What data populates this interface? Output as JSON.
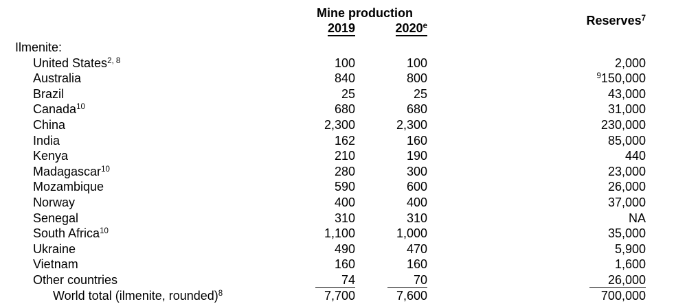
{
  "header": {
    "mine_production_label": "Mine production",
    "year_2019": "2019",
    "year_2020": "2020",
    "year_2020_sup": "e",
    "reserves_label": "Reserves",
    "reserves_sup": "7"
  },
  "section": {
    "label": "Ilmenite:"
  },
  "rows": [
    {
      "label": "United States",
      "label_sup": "2, 8",
      "prod_2019": "100",
      "prod_2020": "100",
      "reserves": "2,000"
    },
    {
      "label": "Australia",
      "prod_2019": "840",
      "prod_2020": "800",
      "reserves": "150,000",
      "reserves_presup": "9"
    },
    {
      "label": "Brazil",
      "prod_2019": "25",
      "prod_2020": "25",
      "reserves": "43,000"
    },
    {
      "label": "Canada",
      "label_sup": "10",
      "prod_2019": "680",
      "prod_2020": "680",
      "reserves": "31,000"
    },
    {
      "label": "China",
      "prod_2019": "2,300",
      "prod_2020": "2,300",
      "reserves": "230,000"
    },
    {
      "label": "India",
      "prod_2019": "162",
      "prod_2020": "160",
      "reserves": "85,000"
    },
    {
      "label": "Kenya",
      "prod_2019": "210",
      "prod_2020": "190",
      "reserves": "440"
    },
    {
      "label": "Madagascar",
      "label_sup": "10",
      "prod_2019": "280",
      "prod_2020": "300",
      "reserves": "23,000"
    },
    {
      "label": "Mozambique",
      "prod_2019": "590",
      "prod_2020": "600",
      "reserves": "26,000"
    },
    {
      "label": "Norway",
      "prod_2019": "400",
      "prod_2020": "400",
      "reserves": "37,000"
    },
    {
      "label": "Senegal",
      "prod_2019": "310",
      "prod_2020": "310",
      "reserves": "NA"
    },
    {
      "label": "South Africa",
      "label_sup": "10",
      "prod_2019": "1,100",
      "prod_2020": "1,000",
      "reserves": "35,000"
    },
    {
      "label": "Ukraine",
      "prod_2019": "490",
      "prod_2020": "470",
      "reserves": "5,900"
    },
    {
      "label": "Vietnam",
      "prod_2019": "160",
      "prod_2020": "160",
      "reserves": "1,600"
    },
    {
      "label": "Other countries",
      "prod_2019": "74",
      "prod_2020": "70",
      "reserves": "26,000",
      "sum_rule": true
    }
  ],
  "total": {
    "label": "World total (ilmenite, rounded)",
    "label_sup": "8",
    "prod_2019": "7,700",
    "prod_2020": "7,600",
    "reserves": "700,000"
  },
  "colors": {
    "text": "#000000",
    "background": "#ffffff"
  }
}
